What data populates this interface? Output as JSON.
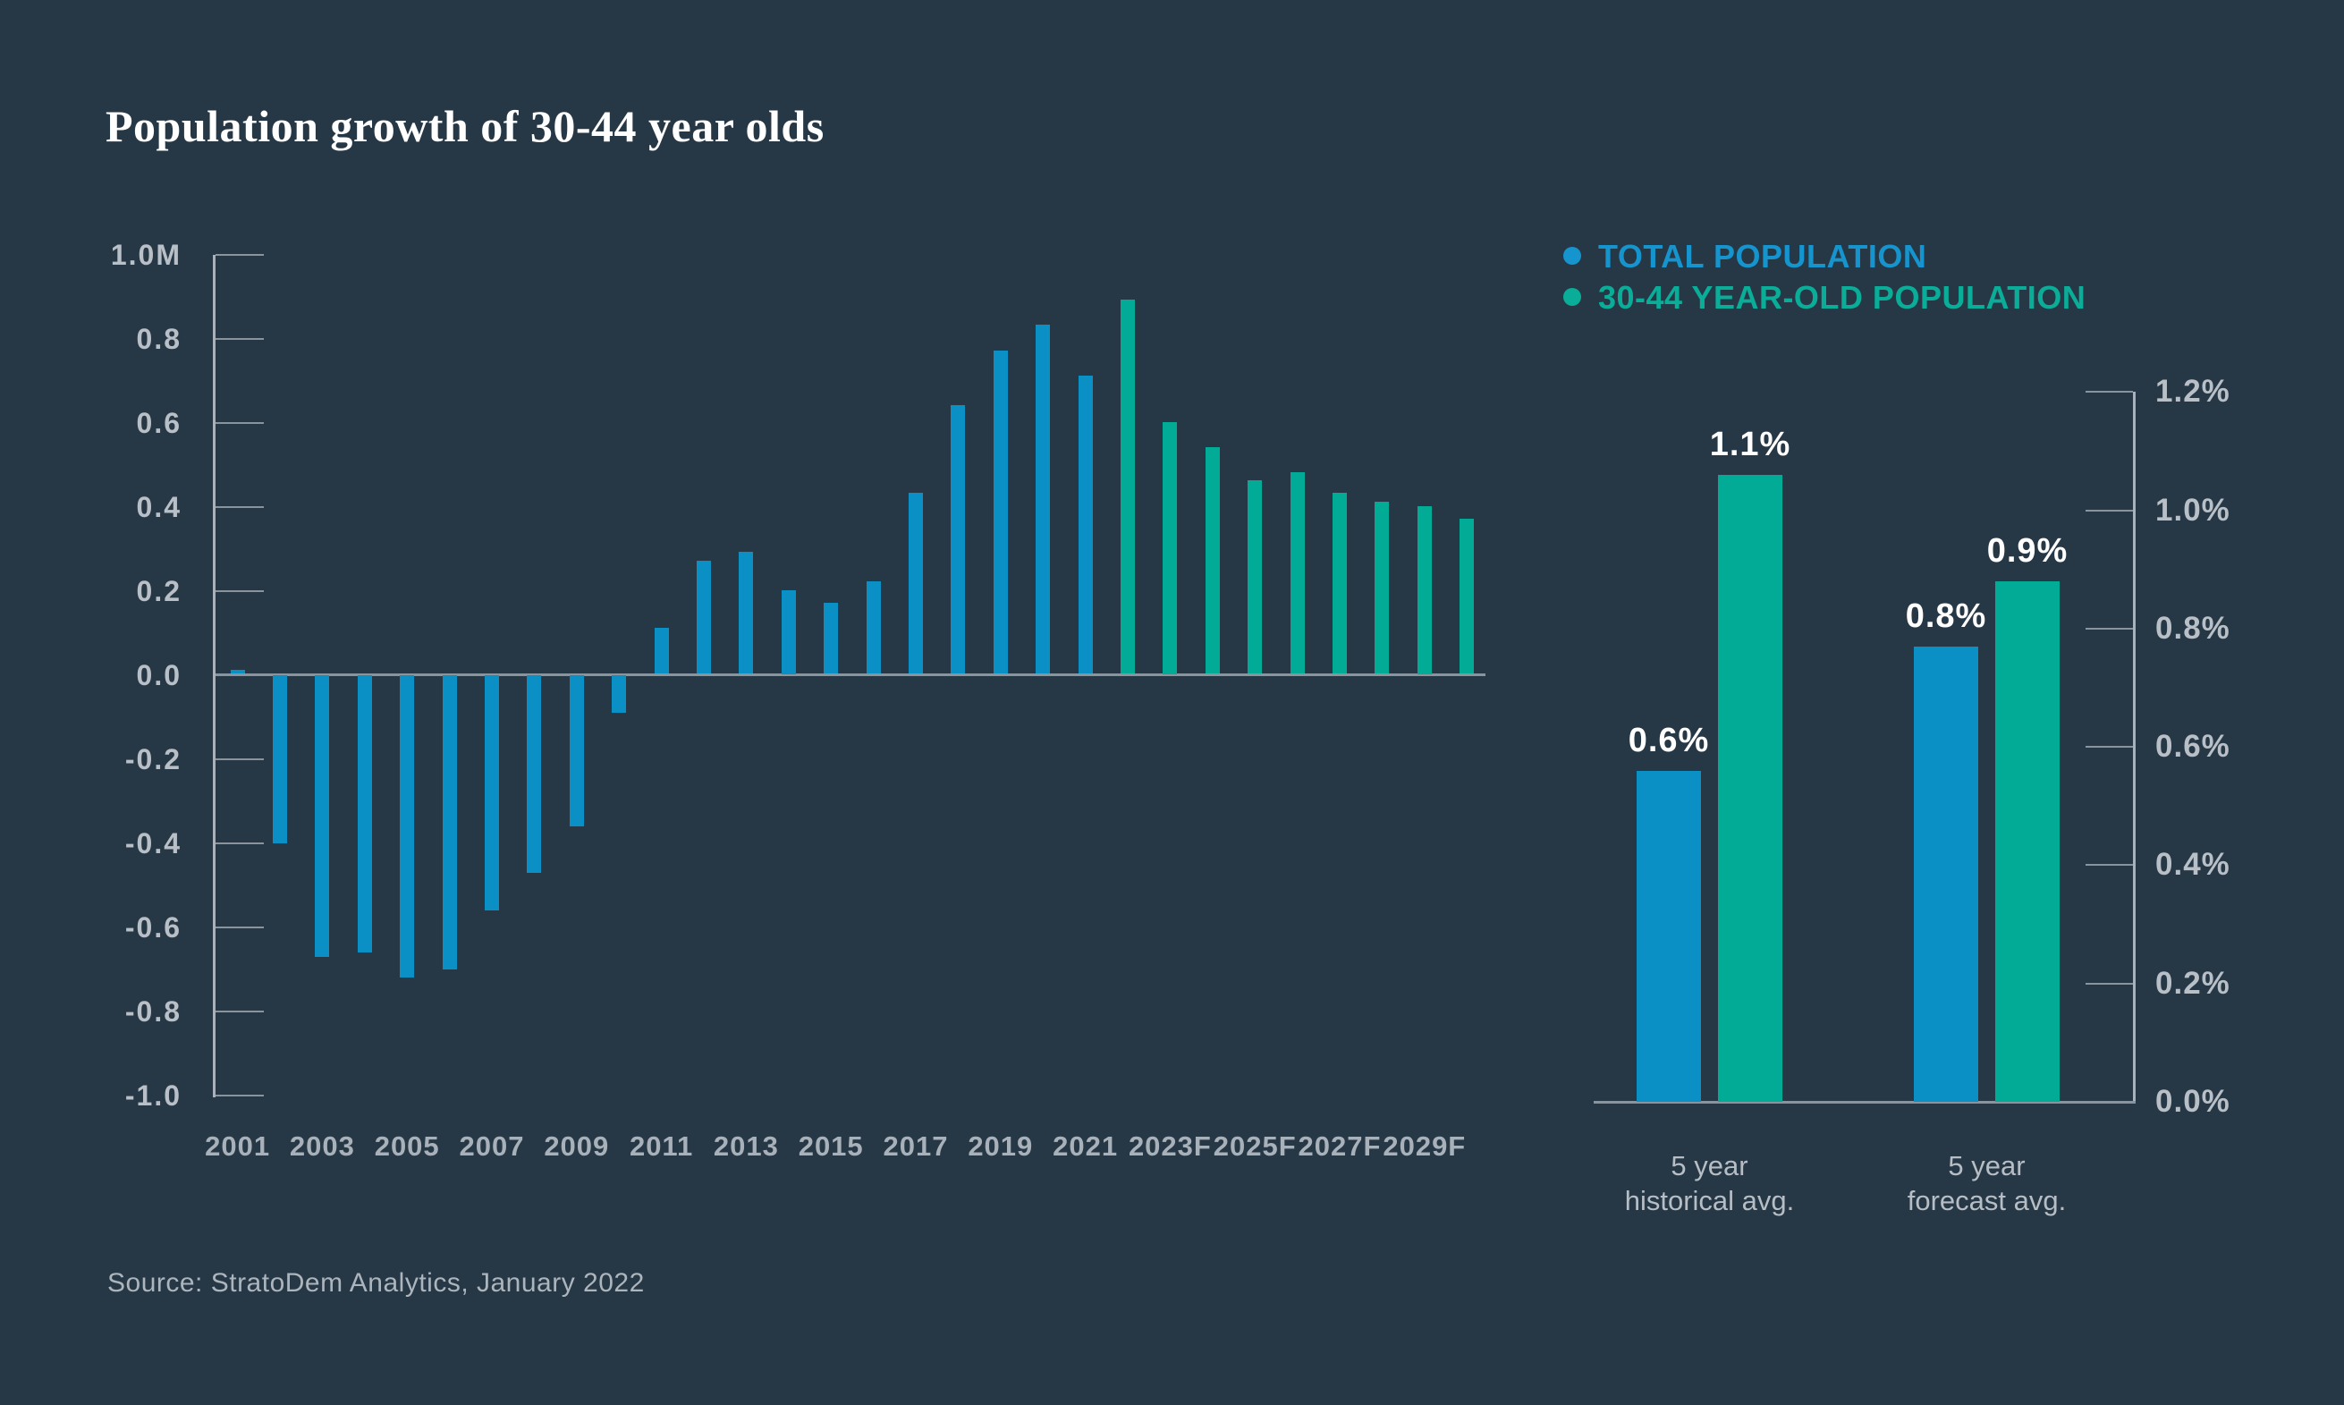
{
  "title": "Population growth of 30-44 year olds",
  "source": "Source: StratoDem Analytics, January 2022",
  "colors": {
    "background": "#263746",
    "blue": "#0b90c6",
    "green": "#02ab96",
    "legend_blue": "#1694cd",
    "legend_green": "#0aae98",
    "axis_line": "#a9b2ba",
    "tick_line": "#8a949d",
    "zero_line": "#8a949d",
    "y_label": "#b8bfc6",
    "x_label": "#a8b1b9",
    "data_label": "#ffffff",
    "source_text": "#acb4bc"
  },
  "legend": {
    "items": [
      {
        "label": "TOTAL POPULATION",
        "color_key": "legend_blue"
      },
      {
        "label": "30-44 YEAR-OLD POPULATION",
        "color_key": "legend_green"
      }
    ]
  },
  "chart_data": [
    {
      "id": "growth-by-year",
      "type": "bar",
      "title": "Population growth of 30-44 year olds",
      "unit": "millions of people",
      "ylim": [
        -1.0,
        1.0
      ],
      "ytick_step": 0.2,
      "ytick_labels": [
        "1.0M",
        "0.8",
        "0.6",
        "0.4",
        "0.2",
        "0.0",
        "-0.2",
        "-0.4",
        "-0.6",
        "-0.8",
        "-1.0"
      ],
      "xtick_labels": [
        "2001",
        "2003",
        "2005",
        "2007",
        "2009",
        "2011",
        "2013",
        "2015",
        "2017",
        "2019",
        "2021",
        "2023F",
        "2025F",
        "2027F",
        "2029F"
      ],
      "grid": false,
      "bars": [
        {
          "year": "2001",
          "value": 0.01,
          "color": "blue"
        },
        {
          "year": "2002",
          "value": -0.4,
          "color": "blue"
        },
        {
          "year": "2003",
          "value": -0.67,
          "color": "blue"
        },
        {
          "year": "2004",
          "value": -0.66,
          "color": "blue"
        },
        {
          "year": "2005",
          "value": -0.72,
          "color": "blue"
        },
        {
          "year": "2006",
          "value": -0.7,
          "color": "blue"
        },
        {
          "year": "2007",
          "value": -0.56,
          "color": "blue"
        },
        {
          "year": "2008",
          "value": -0.47,
          "color": "blue"
        },
        {
          "year": "2009",
          "value": -0.36,
          "color": "blue"
        },
        {
          "year": "2010",
          "value": -0.09,
          "color": "blue"
        },
        {
          "year": "2011",
          "value": 0.11,
          "color": "blue"
        },
        {
          "year": "2012",
          "value": 0.27,
          "color": "blue"
        },
        {
          "year": "2013",
          "value": 0.29,
          "color": "blue"
        },
        {
          "year": "2014",
          "value": 0.2,
          "color": "blue"
        },
        {
          "year": "2015",
          "value": 0.17,
          "color": "blue"
        },
        {
          "year": "2016",
          "value": 0.22,
          "color": "blue"
        },
        {
          "year": "2017",
          "value": 0.43,
          "color": "blue"
        },
        {
          "year": "2018",
          "value": 0.64,
          "color": "blue"
        },
        {
          "year": "2019",
          "value": 0.77,
          "color": "blue"
        },
        {
          "year": "2020",
          "value": 0.83,
          "color": "blue"
        },
        {
          "year": "2021",
          "value": 0.71,
          "color": "blue"
        },
        {
          "year": "2022",
          "value": 0.89,
          "color": "green"
        },
        {
          "year": "2023",
          "value": 0.6,
          "color": "green"
        },
        {
          "year": "2024",
          "value": 0.54,
          "color": "green"
        },
        {
          "year": "2025",
          "value": 0.46,
          "color": "green"
        },
        {
          "year": "2026",
          "value": 0.48,
          "color": "green"
        },
        {
          "year": "2027",
          "value": 0.43,
          "color": "green"
        },
        {
          "year": "2028",
          "value": 0.41,
          "color": "green"
        },
        {
          "year": "2029",
          "value": 0.4,
          "color": "green"
        },
        {
          "year": "2030",
          "value": 0.37,
          "color": "green"
        }
      ]
    },
    {
      "id": "avg-growth-comparison",
      "type": "bar",
      "ylim": [
        0,
        1.2
      ],
      "ytick_labels": [
        "0.0%",
        "0.2%",
        "0.4%",
        "0.6%",
        "0.8%",
        "1.0%",
        "1.2%"
      ],
      "axis_side": "right",
      "groups": [
        {
          "label_lines": [
            "5 year",
            "historical avg."
          ],
          "bars": [
            {
              "series": "TOTAL POPULATION",
              "value": 0.56,
              "display_label": "0.6%",
              "color": "blue"
            },
            {
              "series": "30-44 YEAR-OLD POPULATION",
              "value": 1.06,
              "display_label": "1.1%",
              "color": "green"
            }
          ]
        },
        {
          "label_lines": [
            "5 year",
            "forecast avg."
          ],
          "bars": [
            {
              "series": "TOTAL POPULATION",
              "value": 0.77,
              "display_label": "0.8%",
              "color": "blue"
            },
            {
              "series": "30-44 YEAR-OLD POPULATION",
              "value": 0.88,
              "display_label": "0.9%",
              "color": "green"
            }
          ]
        }
      ]
    }
  ]
}
